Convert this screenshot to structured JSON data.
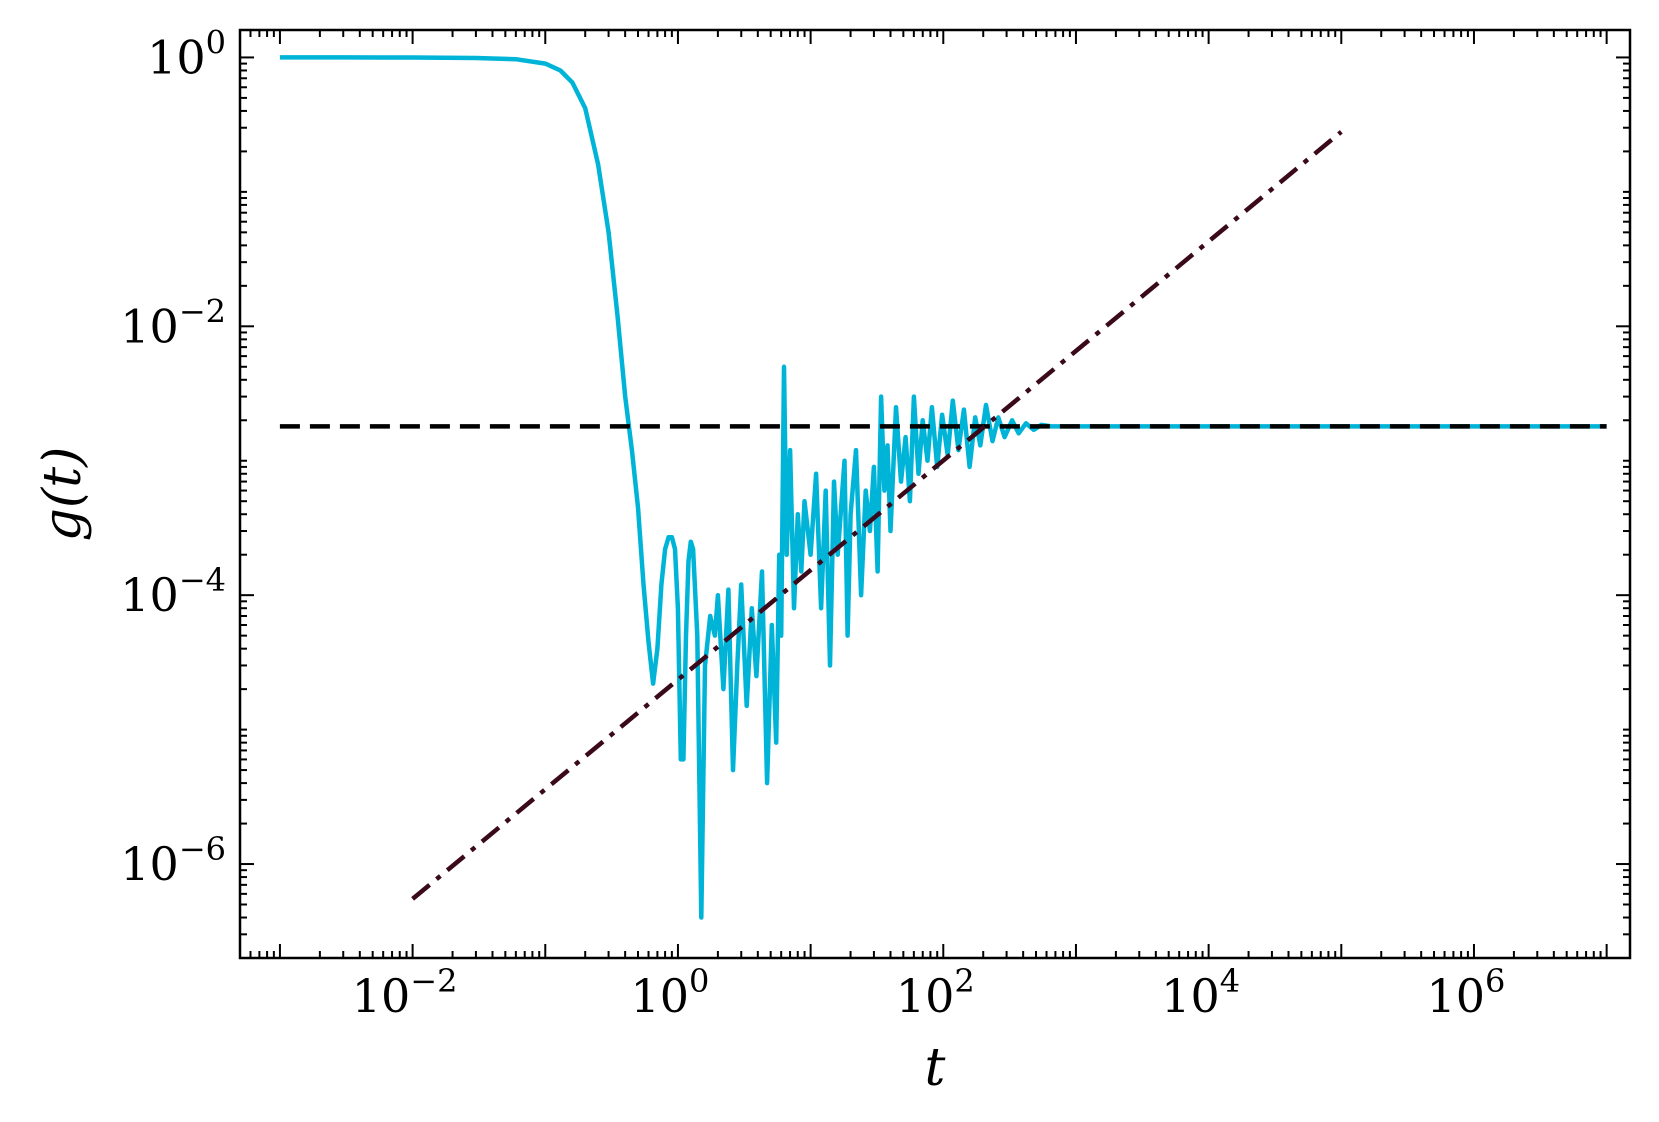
{
  "chart_data": {
    "type": "line",
    "title": "",
    "xlabel": "t",
    "ylabel": "g(t)",
    "xscale": "log",
    "yscale": "log",
    "xlim": [
      0.0005,
      15000000
    ],
    "ylim": [
      2e-07,
      1.6
    ],
    "grid": false,
    "legend": "none",
    "x_ticks": [
      {
        "base": "10",
        "exp": "−2",
        "value": 0.01
      },
      {
        "base": "10",
        "exp": "0",
        "value": 1
      },
      {
        "base": "10",
        "exp": "2",
        "value": 100
      },
      {
        "base": "10",
        "exp": "4",
        "value": 10000
      },
      {
        "base": "10",
        "exp": "6",
        "value": 1000000
      }
    ],
    "y_ticks": [
      {
        "base": "10",
        "exp": "0",
        "value": 1
      },
      {
        "base": "10",
        "exp": "−2",
        "value": 0.01
      },
      {
        "base": "10",
        "exp": "−4",
        "value": 0.0001
      },
      {
        "base": "10",
        "exp": "−6",
        "value": 1e-06
      }
    ],
    "series": [
      {
        "style": "solid",
        "color": "#00b4d8",
        "points": [
          [
            0.001,
            1.0
          ],
          [
            0.003,
            1.0
          ],
          [
            0.01,
            0.999
          ],
          [
            0.03,
            0.99
          ],
          [
            0.06,
            0.97
          ],
          [
            0.1,
            0.9
          ],
          [
            0.13,
            0.8
          ],
          [
            0.16,
            0.65
          ],
          [
            0.2,
            0.42
          ],
          [
            0.25,
            0.16
          ],
          [
            0.3,
            0.05
          ],
          [
            0.35,
            0.012
          ],
          [
            0.4,
            0.003
          ],
          [
            0.45,
            0.0012
          ],
          [
            0.5,
            0.00045
          ],
          [
            0.55,
            0.00012
          ],
          [
            0.6,
            4.5e-05
          ],
          [
            0.65,
            2.2e-05
          ],
          [
            0.7,
            4e-05
          ],
          [
            0.75,
            0.00012
          ],
          [
            0.8,
            0.00022
          ],
          [
            0.85,
            0.00027
          ],
          [
            0.9,
            0.00027
          ],
          [
            0.95,
            0.00022
          ],
          [
            1.0,
            8e-05
          ],
          [
            1.05,
            6e-06
          ],
          [
            1.1,
            6e-06
          ],
          [
            1.15,
            5e-05
          ],
          [
            1.2,
            0.00018
          ],
          [
            1.25,
            0.00025
          ],
          [
            1.3,
            0.00022
          ],
          [
            1.4,
            5e-05
          ],
          [
            1.5,
            4e-07
          ],
          [
            1.6,
            3e-05
          ],
          [
            1.75,
            7e-05
          ],
          [
            1.9,
            5e-05
          ],
          [
            2.0,
            0.0001
          ],
          [
            2.2,
            2e-05
          ],
          [
            2.4,
            0.00011
          ],
          [
            2.6,
            5e-06
          ],
          [
            2.8,
            3e-05
          ],
          [
            3.0,
            0.00012
          ],
          [
            3.3,
            1.5e-05
          ],
          [
            3.6,
            8e-05
          ],
          [
            3.9,
            2.5e-05
          ],
          [
            4.3,
            0.00015
          ],
          [
            4.7,
            4e-06
          ],
          [
            5.1,
            6e-05
          ],
          [
            5.5,
            8e-06
          ],
          [
            5.8,
            0.0002
          ],
          [
            6.0,
            5e-05
          ],
          [
            6.3,
            0.005
          ],
          [
            6.6,
            0.0002
          ],
          [
            7.0,
            0.0012
          ],
          [
            7.5,
            8e-05
          ],
          [
            8.0,
            0.0004
          ],
          [
            8.5,
            0.00015
          ],
          [
            9.0,
            0.0005
          ],
          [
            10,
            0.0002
          ],
          [
            11,
            0.0008
          ],
          [
            12,
            8e-05
          ],
          [
            13,
            0.0006
          ],
          [
            14,
            3e-05
          ],
          [
            15,
            0.0007
          ],
          [
            16,
            0.0002
          ],
          [
            18,
            0.001
          ],
          [
            19,
            5e-05
          ],
          [
            20,
            0.0004
          ],
          [
            22,
            0.0012
          ],
          [
            24,
            0.0001
          ],
          [
            26,
            0.0006
          ],
          [
            28,
            0.0003
          ],
          [
            30,
            0.0009
          ],
          [
            32,
            0.00015
          ],
          [
            34,
            0.003
          ],
          [
            36,
            0.0006
          ],
          [
            38,
            0.0013
          ],
          [
            40,
            0.0003
          ],
          [
            44,
            0.0025
          ],
          [
            48,
            0.0007
          ],
          [
            52,
            0.0015
          ],
          [
            56,
            0.0005
          ],
          [
            60,
            0.003
          ],
          [
            65,
            0.0008
          ],
          [
            70,
            0.002
          ],
          [
            76,
            0.001
          ],
          [
            82,
            0.0025
          ],
          [
            90,
            0.0009
          ],
          [
            98,
            0.0022
          ],
          [
            108,
            0.0011
          ],
          [
            118,
            0.0028
          ],
          [
            130,
            0.0012
          ],
          [
            143,
            0.0024
          ],
          [
            158,
            0.0009
          ],
          [
            174,
            0.0021
          ],
          [
            190,
            0.0013
          ],
          [
            210,
            0.0026
          ],
          [
            235,
            0.0014
          ],
          [
            260,
            0.0021
          ],
          [
            290,
            0.0015
          ],
          [
            330,
            0.002
          ],
          [
            370,
            0.0016
          ],
          [
            420,
            0.0019
          ],
          [
            480,
            0.0017
          ],
          [
            550,
            0.00185
          ],
          [
            650,
            0.0018
          ],
          [
            800,
            0.0018
          ],
          [
            1000,
            0.0018
          ],
          [
            10000,
            0.0018
          ],
          [
            100000,
            0.0018
          ],
          [
            1000000,
            0.0018
          ],
          [
            10000000,
            0.0018
          ]
        ]
      },
      {
        "style": "dashed",
        "color": "#000000",
        "points": [
          [
            0.001,
            0.0018
          ],
          [
            10000000,
            0.0018
          ]
        ]
      },
      {
        "style": "dashdot",
        "color": "#3a0a1a",
        "points": [
          [
            0.01,
            5.5e-07
          ],
          [
            100000,
            0.28
          ]
        ]
      }
    ]
  }
}
